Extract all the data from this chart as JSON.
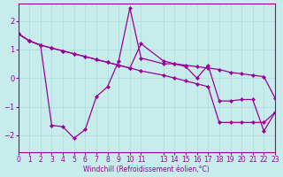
{
  "xlabel": "Windchill (Refroidissement éolien,°C)",
  "bg_color": "#c8ecec",
  "line_color": "#990099",
  "grid_color": "#aadddd",
  "xlim": [
    0,
    23
  ],
  "ylim": [
    -2.6,
    2.6
  ],
  "xticks": [
    0,
    1,
    2,
    3,
    4,
    5,
    6,
    7,
    8,
    9,
    10,
    11,
    13,
    14,
    15,
    16,
    17,
    18,
    19,
    20,
    21,
    22,
    23
  ],
  "yticks": [
    -2,
    -1,
    0,
    1,
    2
  ],
  "line1_x": [
    0,
    1,
    2,
    3,
    4,
    5,
    6,
    7,
    8,
    9,
    10,
    11,
    13,
    14,
    15,
    16,
    17,
    18,
    19,
    20,
    21,
    22,
    23
  ],
  "line1_y": [
    1.55,
    1.3,
    1.15,
    1.05,
    0.95,
    0.85,
    0.75,
    0.65,
    0.55,
    0.45,
    0.35,
    1.2,
    0.6,
    0.5,
    0.45,
    0.4,
    0.35,
    0.3,
    0.2,
    0.15,
    0.1,
    0.05,
    -0.7
  ],
  "line2_x": [
    0,
    1,
    2,
    3,
    4,
    5,
    6,
    7,
    8,
    9,
    10,
    11,
    13,
    14,
    15,
    16,
    17,
    18,
    19,
    20,
    21,
    22,
    23
  ],
  "line2_y": [
    1.55,
    1.3,
    1.15,
    -1.65,
    -1.7,
    -2.1,
    -1.8,
    -0.65,
    -0.3,
    0.6,
    2.45,
    0.7,
    0.5,
    0.5,
    0.4,
    0.0,
    0.45,
    -0.8,
    -0.8,
    -0.75,
    -0.75,
    -1.85,
    -1.2
  ],
  "line3_x": [
    0,
    1,
    2,
    3,
    4,
    5,
    6,
    7,
    8,
    9,
    10,
    11,
    13,
    14,
    15,
    16,
    17,
    18,
    19,
    20,
    21,
    22,
    23
  ],
  "line3_y": [
    1.55,
    1.3,
    1.15,
    1.05,
    0.95,
    0.85,
    0.75,
    0.65,
    0.55,
    0.45,
    0.35,
    0.25,
    0.1,
    0.0,
    -0.1,
    -0.2,
    -0.3,
    -1.55,
    -1.55,
    -1.55,
    -1.55,
    -1.55,
    -1.2
  ]
}
